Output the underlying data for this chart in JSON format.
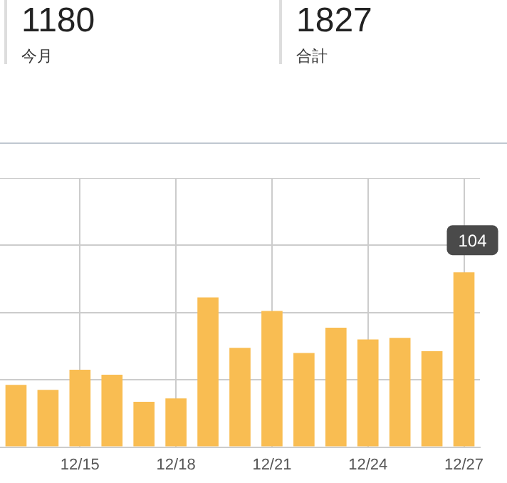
{
  "chart_data": {
    "type": "bar",
    "annotations": [
      "1180",
      "今月",
      "1827",
      "合計"
    ],
    "categories": [
      null,
      null,
      "12/15",
      null,
      null,
      "12/18",
      null,
      null,
      "12/21",
      null,
      null,
      "12/24",
      null,
      null,
      "12/27"
    ],
    "values": [
      37,
      34,
      46,
      43,
      27,
      29,
      89,
      59,
      81,
      56,
      71,
      64,
      65,
      57,
      104
    ],
    "value_labels": [
      null,
      null,
      null,
      null,
      null,
      null,
      null,
      null,
      null,
      null,
      null,
      null,
      null,
      null,
      "104"
    ],
    "color": "#f9bd52",
    "tick_labels": "x",
    "grid": true
  }
}
